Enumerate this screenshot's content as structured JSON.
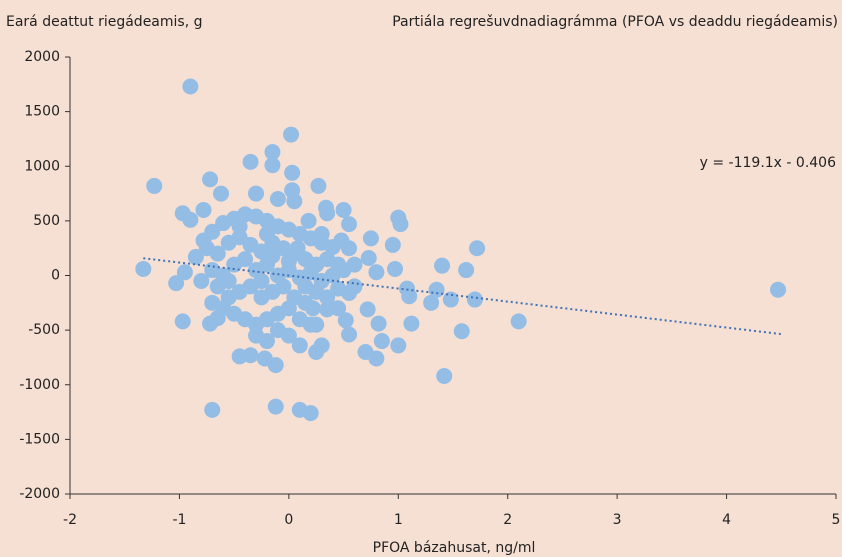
{
  "chart_data": {
    "type": "scatter",
    "title": "Partiála regrešuvdnadiagrámma (PFOA vs deaddu riegádeamis)",
    "y_label": "Eará deattut riegádeamis, g",
    "x_label": "PFOA bázahusat, ng/ml",
    "color": "#94bde6",
    "trendline": {
      "slope": -119.1,
      "intercept": -0.406,
      "x_range": [
        -1.33,
        4.5
      ],
      "label": "y = -119.1x - 0.406",
      "color": "#3f72b5"
    },
    "xlim": [
      -2,
      5
    ],
    "xticks": [
      -2,
      -1,
      0,
      1,
      2,
      3,
      4,
      5
    ],
    "ylim": [
      -2000,
      2000
    ],
    "yticks": [
      -2000,
      -1500,
      -1000,
      -500,
      0,
      500,
      1000,
      1500,
      2000
    ],
    "x": [
      -0.9,
      0.02,
      -0.35,
      -0.15,
      -0.15,
      -1.23,
      -0.72,
      0.27,
      0.03,
      0.03,
      -0.62,
      -0.3,
      4.47,
      2.1,
      1.72,
      1.62,
      1.58,
      1.4,
      1.48,
      1.7,
      1.35,
      1.3,
      1.42,
      1.12,
      1.0,
      1.02,
      0.95,
      0.97,
      1.08,
      1.1,
      1.0,
      0.85,
      0.8,
      0.82,
      0.7,
      0.72,
      0.75,
      0.73,
      0.8,
      0.55,
      0.52,
      0.3,
      0.25,
      0.1,
      -0.12,
      -0.22,
      -0.35,
      -0.45,
      -0.7,
      -0.12,
      0.1,
      0.2,
      -0.97,
      -0.72,
      -0.65,
      -1.33,
      -1.03,
      -0.95,
      -0.97,
      -0.9,
      -0.78,
      -0.85,
      -0.78,
      0.5,
      0.55,
      0.34,
      0.35,
      0.18,
      -0.1,
      0.05,
      0.48,
      0.55,
      0.6,
      0.55,
      0.6,
      0.45,
      0.35,
      0.25,
      -0.7,
      -0.6,
      -0.5,
      -0.4,
      -0.3,
      -0.2,
      -0.1,
      0,
      0.1,
      0.2,
      0.3,
      0.4,
      -0.75,
      -0.65,
      -0.55,
      -0.45,
      -0.35,
      -0.25,
      -0.15,
      -0.05,
      0.05,
      0.15,
      0.25,
      0.35,
      0.45,
      0.5,
      -0.7,
      -0.6,
      -0.5,
      -0.4,
      -0.3,
      -0.2,
      -0.1,
      0,
      0.1,
      0.2,
      0.3,
      0.4,
      -0.8,
      -0.65,
      -0.55,
      -0.45,
      -0.35,
      -0.25,
      -0.15,
      -0.05,
      0.05,
      0.15,
      0.25,
      0.35,
      -0.7,
      -0.6,
      -0.5,
      -0.4,
      -0.3,
      -0.2,
      -0.1,
      0,
      0.1,
      0.2,
      -0.3,
      -0.2,
      -0.1,
      0.0,
      -0.25,
      -0.15,
      0.0,
      -0.45,
      -0.2,
      0.08,
      0.22,
      -0.55,
      0.45,
      0.3,
      0.15
    ],
    "values": [
      1730,
      1290,
      1040,
      1130,
      1010,
      820,
      880,
      820,
      940,
      780,
      750,
      750,
      -130,
      -420,
      250,
      50,
      -510,
      90,
      -220,
      -220,
      -130,
      -250,
      -920,
      -440,
      530,
      470,
      280,
      60,
      -120,
      -190,
      -640,
      -600,
      -760,
      -440,
      -700,
      -310,
      340,
      160,
      30,
      -540,
      -410,
      -640,
      -700,
      -640,
      -820,
      -760,
      -730,
      -740,
      -1230,
      -1200,
      -1230,
      -1260,
      -420,
      -440,
      -390,
      60,
      -70,
      30,
      570,
      510,
      600,
      170,
      320,
      600,
      470,
      620,
      570,
      500,
      700,
      680,
      320,
      250,
      100,
      -160,
      -100,
      -300,
      -310,
      -450,
      400,
      480,
      520,
      560,
      540,
      500,
      450,
      420,
      380,
      340,
      300,
      260,
      250,
      200,
      300,
      350,
      280,
      220,
      300,
      250,
      200,
      150,
      100,
      150,
      100,
      50,
      50,
      0,
      100,
      150,
      50,
      100,
      0,
      50,
      -20,
      30,
      -50,
      0,
      -50,
      -100,
      -200,
      -150,
      -100,
      -50,
      -150,
      -100,
      -200,
      -250,
      -150,
      -200,
      -250,
      -300,
      -350,
      -400,
      -450,
      -400,
      -350,
      -300,
      -400,
      -450,
      -550,
      -600,
      -500,
      -550,
      -200,
      180,
      130,
      450,
      380,
      250,
      -300,
      -50,
      -120,
      380,
      -100
    ]
  }
}
